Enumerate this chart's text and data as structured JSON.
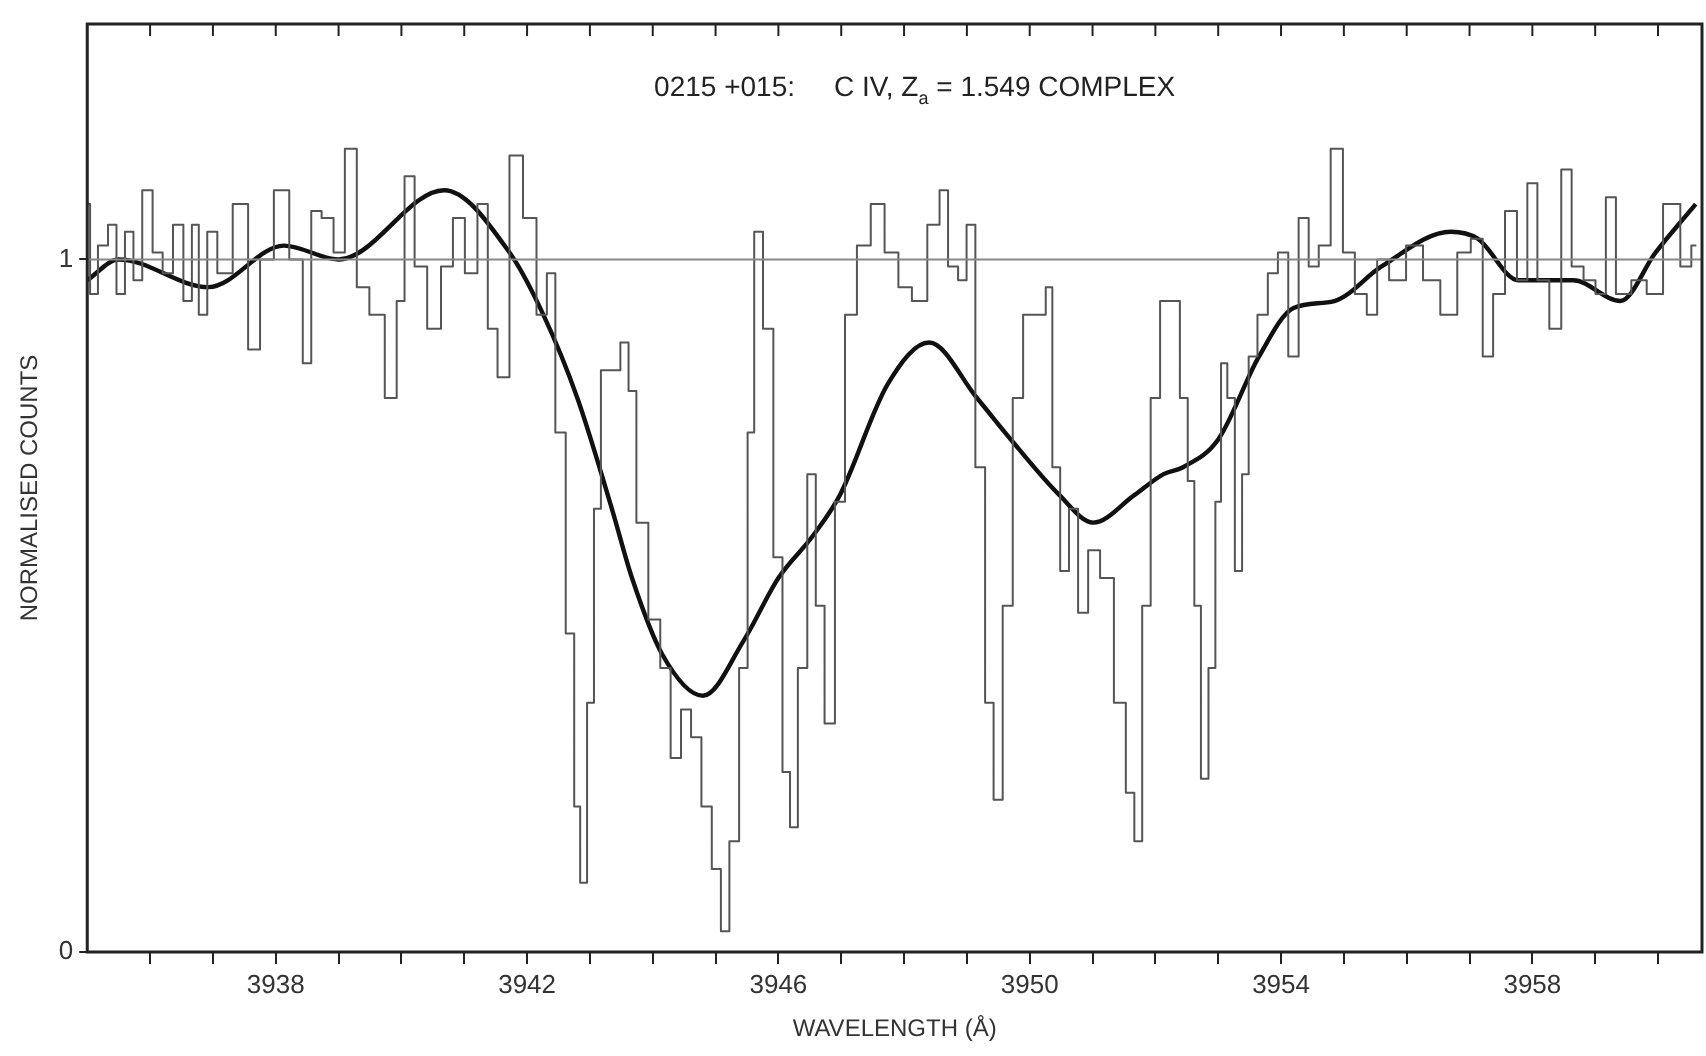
{
  "chart_data": {
    "type": "step",
    "title": "0215 +015:     C IV, Z$_{a}$ = 1.549 COMPLEX",
    "xlabel": "WAVELENGTH (Å)",
    "ylabel": "NORMALISED COUNTS",
    "xlim": [
      3935,
      3960.7
    ],
    "ylim": [
      0,
      1.34
    ],
    "xticks": [
      {
        "value": 3936,
        "label": null
      },
      {
        "value": 3937,
        "label": null
      },
      3938,
      {
        "value": 3939,
        "label": null
      },
      {
        "value": 3940,
        "label": null
      },
      {
        "value": 3941,
        "label": null
      },
      3942,
      {
        "value": 3943,
        "label": null
      },
      {
        "value": 3944,
        "label": null
      },
      {
        "value": 3945,
        "label": null
      },
      3946,
      {
        "value": 3947,
        "label": null
      },
      {
        "value": 3948,
        "label": null
      },
      {
        "value": 3949,
        "label": null
      },
      3950,
      {
        "value": 3951,
        "label": null
      },
      {
        "value": 3952,
        "label": null
      },
      {
        "value": 3953,
        "label": null
      },
      3954,
      {
        "value": 3955,
        "label": null
      },
      {
        "value": 3956,
        "label": null
      },
      {
        "value": 3957,
        "label": null
      },
      3958,
      {
        "value": 3959,
        "label": null
      },
      {
        "value": 3960,
        "label": null
      }
    ],
    "yticks": [
      0,
      1
    ],
    "grid": false,
    "legend": false,
    "marker": "none",
    "line_style": "solid",
    "ref_lines": [
      {
        "axis": "y",
        "value": 1,
        "color": "#888888"
      }
    ],
    "series": [
      {
        "color": "#555555",
        "x": [
          3935.0,
          3935.09,
          3935.25,
          3935.41,
          3935.52,
          3935.68,
          3935.79,
          3935.96,
          3936.12,
          3936.28,
          3936.45,
          3936.61,
          3936.72,
          3936.83,
          3936.99,
          3937.15,
          3937.48,
          3937.64,
          3937.86,
          3938.08,
          3938.35,
          3938.51,
          3938.62,
          3938.84,
          3939.0,
          3939.2,
          3939.38,
          3939.6,
          3939.87,
          3939.98,
          3940.12,
          3940.3,
          3940.52,
          3940.74,
          3940.9,
          3941.12,
          3941.3,
          3941.45,
          3941.61,
          3941.83,
          3942.04,
          3942.26,
          3942.37,
          3942.53,
          3942.7,
          3942.8,
          3942.89,
          3943.02,
          3943.11,
          3943.24,
          3943.4,
          3943.57,
          3943.66,
          3943.82,
          3944.04,
          3944.2,
          3944.37,
          3944.53,
          3944.69,
          3944.86,
          3945.02,
          3945.15,
          3945.29,
          3945.46,
          3945.56,
          3945.67,
          3945.84,
          3946.0,
          3946.13,
          3946.24,
          3946.38,
          3946.54,
          3946.65,
          3946.82,
          3946.98,
          3947.14,
          3947.36,
          3947.58,
          3947.8,
          3948.02,
          3948.23,
          3948.51,
          3948.62,
          3948.78,
          3948.94,
          3949.05,
          3949.22,
          3949.36,
          3949.49,
          3949.65,
          3949.81,
          3949.98,
          3950.2,
          3950.31,
          3950.41,
          3950.56,
          3950.69,
          3950.85,
          3951.01,
          3951.23,
          3951.45,
          3951.61,
          3951.72,
          3951.86,
          3951.99,
          3952.16,
          3952.32,
          3952.46,
          3952.57,
          3952.67,
          3952.78,
          3952.91,
          3953.0,
          3953.09,
          3953.2,
          3953.33,
          3953.43,
          3953.54,
          3953.71,
          3953.87,
          3954.03,
          3954.2,
          3954.36,
          3954.52,
          3954.68,
          3954.9,
          3955.07,
          3955.28,
          3955.45,
          3955.61,
          3955.83,
          3956.15,
          3956.37,
          3956.7,
          3956.91,
          3957.13,
          3957.29,
          3957.46,
          3957.67,
          3957.84,
          3958.0,
          3958.16,
          3958.38,
          3958.54,
          3958.71,
          3958.92,
          3959.09,
          3959.25,
          3959.41,
          3959.74,
          3959.9,
          3960.26,
          3960.45,
          3960.61
        ],
        "values": [
          1.08,
          0.95,
          1.02,
          1.05,
          0.95,
          1.04,
          0.97,
          1.1,
          1.01,
          0.98,
          1.05,
          0.94,
          1.05,
          0.92,
          1.04,
          0.98,
          1.08,
          0.87,
          1.0,
          1.1,
          1.0,
          0.85,
          1.07,
          1.06,
          1.01,
          1.16,
          0.96,
          0.92,
          0.8,
          0.94,
          1.12,
          0.99,
          0.9,
          0.99,
          1.06,
          0.98,
          1.08,
          0.9,
          0.83,
          1.15,
          1.06,
          0.92,
          0.98,
          0.75,
          0.46,
          0.21,
          0.1,
          0.36,
          0.64,
          0.84,
          0.84,
          0.88,
          0.81,
          0.62,
          0.48,
          0.41,
          0.28,
          0.35,
          0.31,
          0.21,
          0.12,
          0.03,
          0.16,
          0.41,
          0.75,
          1.04,
          0.9,
          0.57,
          0.26,
          0.18,
          0.41,
          0.69,
          0.5,
          0.33,
          0.65,
          0.92,
          1.02,
          1.08,
          1.01,
          0.96,
          0.94,
          1.05,
          1.1,
          0.99,
          0.97,
          1.05,
          0.7,
          0.36,
          0.22,
          0.5,
          0.8,
          0.92,
          0.92,
          0.96,
          0.7,
          0.55,
          0.64,
          0.49,
          0.58,
          0.54,
          0.36,
          0.23,
          0.16,
          0.5,
          0.8,
          0.94,
          0.94,
          0.8,
          0.68,
          0.5,
          0.25,
          0.41,
          0.65,
          0.85,
          0.8,
          0.55,
          0.69,
          0.86,
          0.92,
          0.98,
          1.01,
          0.86,
          1.06,
          0.99,
          1.02,
          1.16,
          1.01,
          0.95,
          0.92,
          1.0,
          0.97,
          1.02,
          0.97,
          0.92,
          1.01,
          1.03,
          0.86,
          0.95,
          1.07,
          0.97,
          1.11,
          0.97,
          0.9,
          1.13,
          0.99,
          0.97,
          0.95,
          1.09,
          0.95,
          0.97,
          0.95,
          1.08,
          0.99,
          1.02
        ]
      },
      {
        "type": "line",
        "color": "#111111",
        "x": [
          3935.0,
          3935.5,
          3936.93,
          3938.13,
          3939.0,
          3940.68,
          3941.72,
          3942.26,
          3942.8,
          3943.35,
          3943.67,
          3944.15,
          3944.8,
          3945.45,
          3946.0,
          3946.54,
          3946.98,
          3947.74,
          3948.4,
          3949.16,
          3949.7,
          3950.47,
          3951.01,
          3951.67,
          3952.13,
          3952.44,
          3953.0,
          3953.65,
          3954.2,
          3954.85,
          3955.6,
          3956.7,
          3957.13,
          3957.78,
          3958.65,
          3959.4,
          3959.96,
          3960.6
        ],
        "values": [
          0.97,
          1.0,
          0.96,
          1.02,
          1.0,
          1.1,
          1.01,
          0.92,
          0.8,
          0.64,
          0.54,
          0.43,
          0.37,
          0.45,
          0.54,
          0.6,
          0.66,
          0.82,
          0.88,
          0.8,
          0.74,
          0.66,
          0.62,
          0.66,
          0.69,
          0.7,
          0.74,
          0.86,
          0.93,
          0.94,
          0.99,
          1.04,
          1.03,
          0.97,
          0.97,
          0.94,
          1.01,
          1.08
        ]
      }
    ]
  }
}
